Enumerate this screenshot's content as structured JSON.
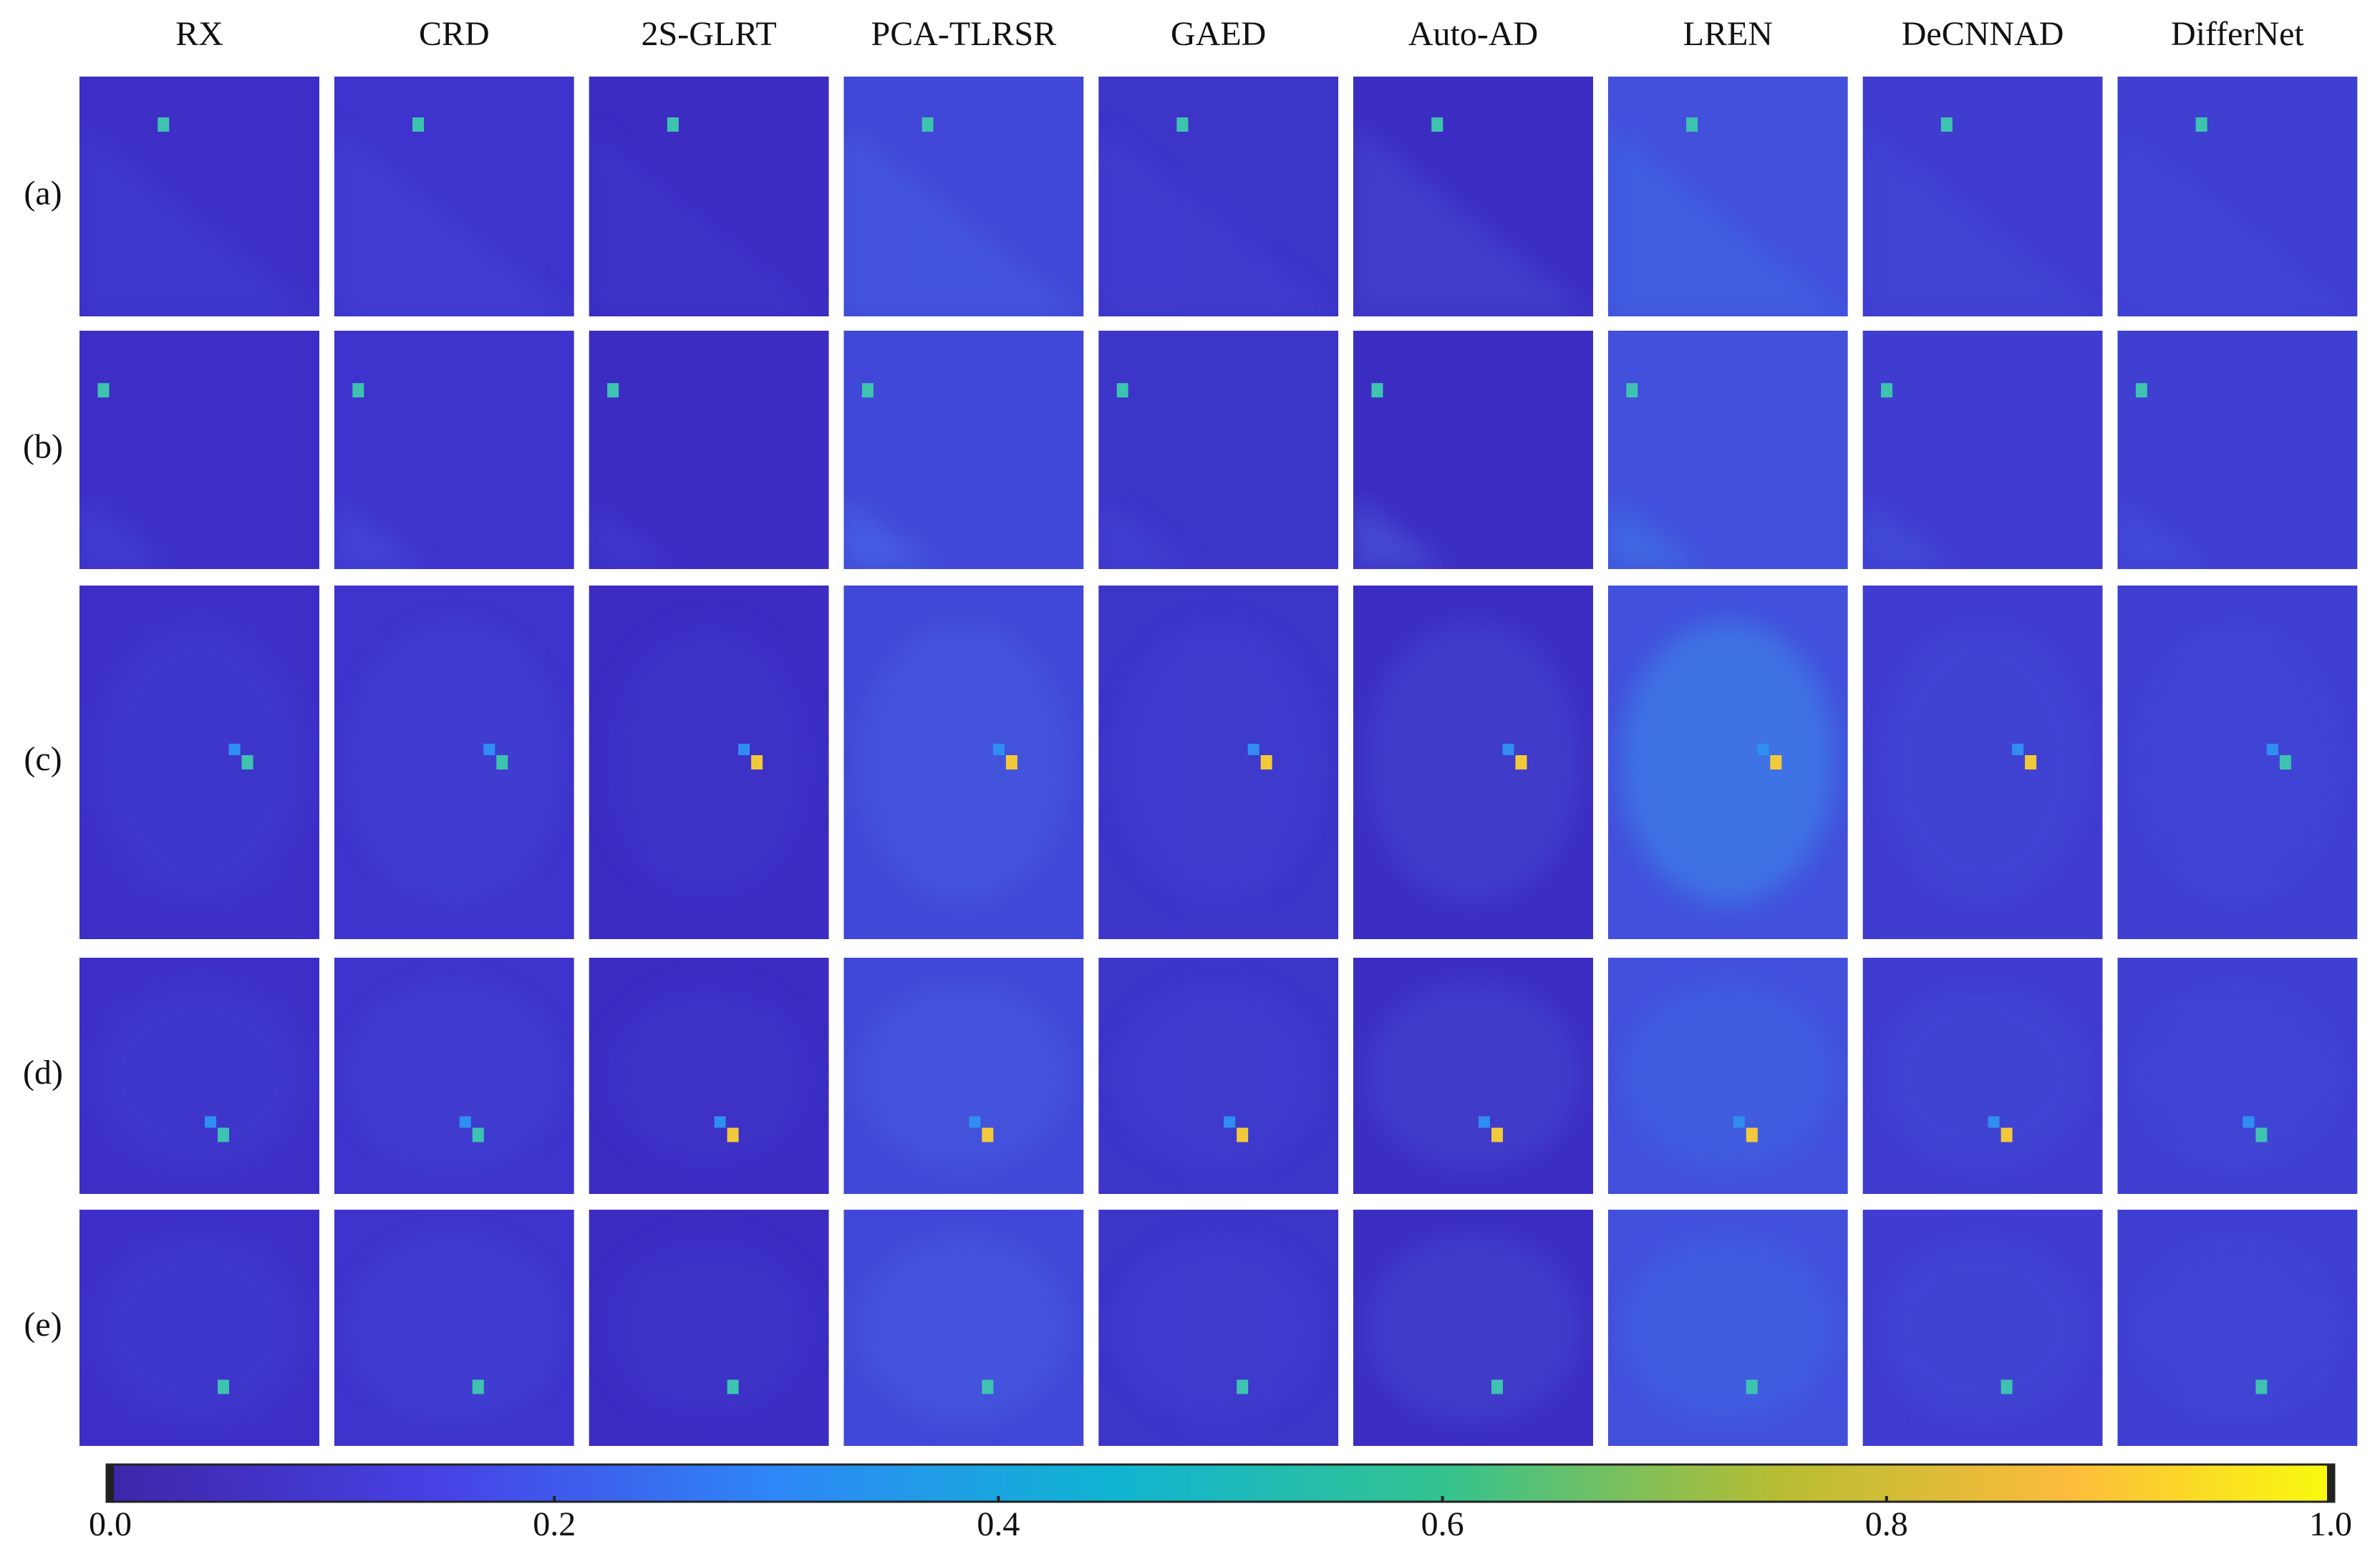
{
  "columns": [
    "RX",
    "CRD",
    "2S-GLRT",
    "PCA-TLRSR",
    "GAED",
    "Auto-AD",
    "LREN",
    "DeCNNAD",
    "DifferNet"
  ],
  "rows": [
    "(a)",
    "(b)",
    "(c)",
    "(d)",
    "(e)"
  ],
  "colorbar": {
    "lim": [
      0,
      1
    ],
    "ticks": [
      {
        "value": 0,
        "label": "0.0"
      },
      {
        "value": 0.2,
        "label": "0.2"
      },
      {
        "value": 0.4,
        "label": "0.4"
      },
      {
        "value": 0.6,
        "label": "0.6"
      },
      {
        "value": 0.8,
        "label": "0.8"
      },
      {
        "value": 1,
        "label": "1.0"
      }
    ]
  }
}
